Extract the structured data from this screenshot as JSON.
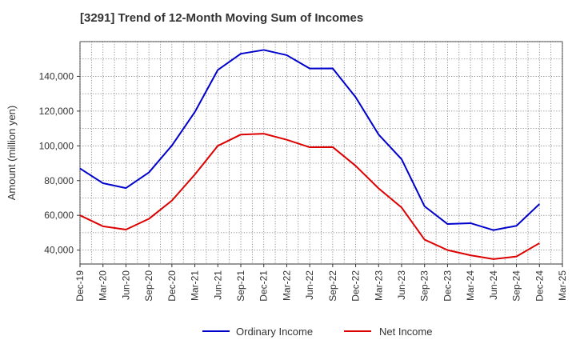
{
  "chart_data": {
    "type": "line",
    "title": "[3291]  Trend of 12-Month Moving Sum of Incomes",
    "ylabel": "Amount (million yen)",
    "xlabel": "",
    "categories": [
      "Dec-19",
      "Mar-20",
      "Jun-20",
      "Sep-20",
      "Dec-20",
      "Mar-21",
      "Jun-21",
      "Sep-21",
      "Dec-21",
      "Mar-22",
      "Jun-22",
      "Sep-22",
      "Dec-22",
      "Mar-23",
      "Jun-23",
      "Sep-23",
      "Dec-23",
      "Mar-24",
      "Jun-24",
      "Sep-24",
      "Dec-24",
      "Mar-25"
    ],
    "ylim": [
      32000,
      160000
    ],
    "yticks": [
      40000,
      60000,
      80000,
      100000,
      120000,
      140000
    ],
    "ytick_labels": [
      "40,000",
      "60,000",
      "80,000",
      "100,000",
      "120,000",
      "140,000"
    ],
    "grid": true,
    "legend_position": "bottom",
    "series": [
      {
        "name": "Ordinary Income",
        "color": "#0000cc",
        "values": [
          87000,
          78500,
          75700,
          84700,
          100200,
          119500,
          143700,
          153000,
          155200,
          152200,
          144500,
          144600,
          128000,
          106500,
          92300,
          65200,
          55000,
          55500,
          51500,
          54000,
          66500,
          null
        ]
      },
      {
        "name": "Net Income",
        "color": "#dd0000",
        "values": [
          60000,
          53700,
          51800,
          58000,
          68500,
          83500,
          100000,
          106500,
          107000,
          103500,
          99200,
          99300,
          88500,
          75500,
          64500,
          46000,
          40000,
          37000,
          34800,
          36300,
          44000,
          null
        ]
      }
    ]
  }
}
